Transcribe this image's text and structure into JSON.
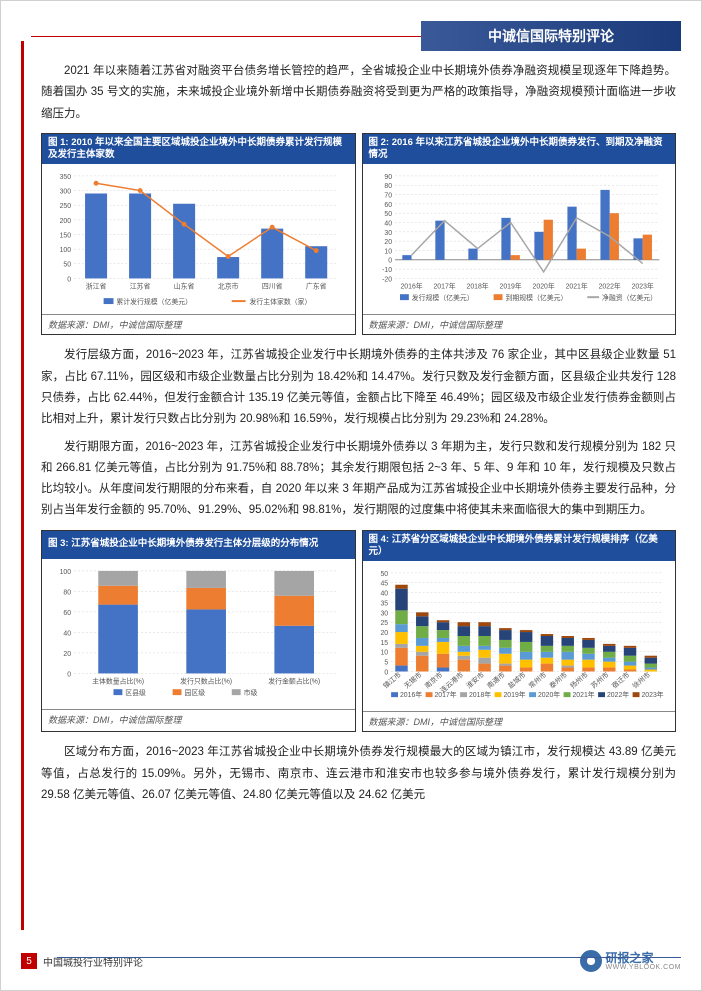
{
  "header": {
    "banner_text": "中诚信国际特别评论"
  },
  "paragraphs": {
    "p1": "2021 年以来随着江苏省对融资平台债务增长管控的趋严，全省城投企业中长期境外债券净融资规模呈现逐年下降趋势。随着国办 35 号文的实施，未来城投企业境外新增中长期债券融资将受到更为严格的政策指导，净融资规模预计面临进一步收缩压力。",
    "p2": "发行层级方面，2016~2023 年，江苏省城投企业发行中长期境外债券的主体共涉及 76 家企业，其中区县级企业数量 51 家，占比 67.11%，园区级和市级企业数量占比分别为 18.42%和 14.47%。发行只数及发行金额方面，区县级企业共发行 128 只债券，占比 62.44%，但发行金额合计 135.19 亿美元等值，金额占比下降至 46.49%；园区级及市级企业发行债券金额则占比相对上升，累计发行只数占比分别为 20.98%和 16.59%，发行规模占比分别为 29.23%和 24.28%。",
    "p3": "发行期限方面，2016~2023 年，江苏省城投企业发行中长期境外债券以 3 年期为主，发行只数和发行规模分别为 182 只和 266.81 亿美元等值，占比分别为 91.75%和 88.78%；其余发行期限包括 2~3 年、5 年、9 年和 10 年，发行规模及只数占比均较小。从年度间发行期限的分布来看，自 2020 年以来 3 年期产品成为江苏省城投企业中长期境外债券主要发行品种，分别占当年发行金额的 95.70%、91.29%、95.02%和 98.81%，发行期限的过度集中将使其未来面临很大的集中到期压力。",
    "p4": "区域分布方面，2016~2023 年江苏省城投企业中长期境外债券发行规模最大的区域为镇江市，发行规模达 43.89 亿美元等值，占总发行的 15.09%。另外，无锡市、南京市、连云港市和淮安市也较多参与境外债券发行，累计发行规模分别为 29.58 亿美元等值、26.07 亿美元等值、24.80 亿美元等值以及 24.62 亿美元"
  },
  "chart1": {
    "title": "图 1:  2010 年以来全国主要区域城投企业境外中长期债券累计发行规模及发行主体家数",
    "source": "数据来源：DMI，中诚信国际整理",
    "categories": [
      "浙江省",
      "江苏省",
      "山东省",
      "北京市",
      "四川省",
      "广东省"
    ],
    "left_label": "",
    "bars": [
      290,
      290,
      255,
      73,
      170,
      110
    ],
    "line": [
      325,
      300,
      185,
      75,
      175,
      95
    ],
    "ylim": [
      0,
      350
    ],
    "ytick_step": 50,
    "bar_color": "#4472c4",
    "line_color": "#ed7d31",
    "legend_bar": "累计发行规模（亿美元）",
    "legend_line": "发行主体家数（家）",
    "background": "#ffffff",
    "grid_color": "#d9d9d9"
  },
  "chart2": {
    "title": "图 2:    2016 年以来江苏省城投企业境外中长期债券发行、到期及净融资情况",
    "source": "数据来源：DMI，中诚信国际整理",
    "categories": [
      "2016年",
      "2017年",
      "2018年",
      "2019年",
      "2020年",
      "2021年",
      "2022年",
      "2023年"
    ],
    "series_issue": [
      5,
      42,
      12,
      45,
      30,
      57,
      75,
      23
    ],
    "series_mature": [
      0,
      0,
      0,
      5,
      43,
      12,
      50,
      27
    ],
    "series_net": [
      5,
      42,
      12,
      40,
      -13,
      45,
      25,
      -4
    ],
    "ylim": [
      -20,
      90
    ],
    "ytick_step": 10,
    "issue_color": "#4472c4",
    "mature_color": "#ed7d31",
    "net_color": "#a6a6a6",
    "legend_issue": "发行规模（亿美元）",
    "legend_mature": "到期规模（亿美元）",
    "legend_net": "净融资（亿美元）"
  },
  "chart3": {
    "title": "图 3:  江苏省城投企业中长期境外债券发行主体分层级的分布情况",
    "source": "数据来源：DMI，中诚信国际整理",
    "categories": [
      "主体数量占比(%)",
      "发行只数占比(%)",
      "发行金额占比(%)"
    ],
    "district": [
      67.11,
      62.44,
      46.49
    ],
    "park": [
      18.42,
      20.98,
      29.23
    ],
    "city": [
      14.47,
      16.59,
      24.28
    ],
    "ylim": [
      0,
      100
    ],
    "ytick_step": 20,
    "district_color": "#4472c4",
    "park_color": "#ed7d31",
    "city_color": "#a5a5a5",
    "legend_district": "区县级",
    "legend_park": "园区级",
    "legend_city": "市级"
  },
  "chart4": {
    "title": "图 4:  江苏省分区域城投企业中长期境外债券累计发行规模排序（亿美元）",
    "source": "数据来源：DMI，中诚信国际整理",
    "categories": [
      "镇江市",
      "无锡市",
      "南京市",
      "连云港市",
      "淮安市",
      "南通市",
      "盐城市",
      "常州市",
      "泰州市",
      "扬州市",
      "苏州市",
      "宿迁市",
      "徐州市"
    ],
    "years": [
      "2016年",
      "2017年",
      "2018年",
      "2019年",
      "2020年",
      "2021年",
      "2022年",
      "2023年"
    ],
    "year_colors": [
      "#4472c4",
      "#ed7d31",
      "#a5a5a5",
      "#ffc000",
      "#5b9bd5",
      "#70ad47",
      "#264478",
      "#9e480e"
    ],
    "stacks": [
      [
        3,
        9,
        2,
        6,
        4,
        7,
        11,
        2
      ],
      [
        0,
        8,
        2,
        3,
        4,
        6,
        5,
        2
      ],
      [
        2,
        7,
        0,
        6,
        2,
        4,
        4,
        1
      ],
      [
        0,
        6,
        2,
        2,
        3,
        5,
        5,
        2
      ],
      [
        0,
        4,
        3,
        4,
        2,
        5,
        5,
        2
      ],
      [
        0,
        3,
        1,
        5,
        3,
        4,
        5,
        1
      ],
      [
        0,
        2,
        0,
        4,
        4,
        5,
        5,
        1
      ],
      [
        0,
        4,
        0,
        3,
        3,
        3,
        5,
        1
      ],
      [
        0,
        2,
        1,
        3,
        4,
        3,
        4,
        1
      ],
      [
        0,
        2,
        0,
        4,
        3,
        3,
        4,
        1
      ],
      [
        0,
        2,
        0,
        3,
        2,
        3,
        3,
        1
      ],
      [
        0,
        1,
        0,
        2,
        2,
        3,
        4,
        1
      ],
      [
        0,
        0,
        0,
        1,
        1,
        2,
        3,
        1
      ]
    ],
    "ylim": [
      0,
      50
    ],
    "ytick_step": 5
  },
  "footer": {
    "page_number": "5",
    "footer_text": "中国城投行业特别评论",
    "logo_cn": "研报之家",
    "logo_en": "WWW.YBLOOK.COM"
  }
}
